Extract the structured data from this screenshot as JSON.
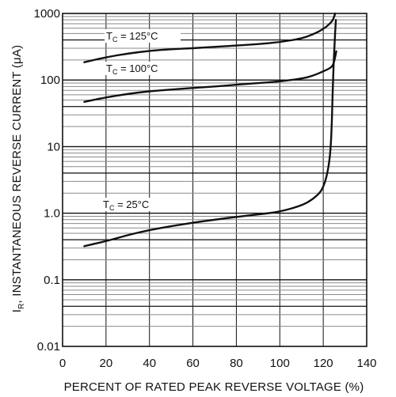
{
  "chart_data": {
    "type": "line",
    "xlabel": "PERCENT OF RATED PEAK REVERSE VOLTAGE (%)",
    "ylabel": "Iₒ, INSTANTANEOUS REVERSE CURRENT (μA)",
    "ylabel_parts": {
      "symbol": "I",
      "subscript": "R",
      "rest": ", INSTANTANEOUS REVERSE CURRENT (μA)"
    },
    "xlim": [
      0,
      140
    ],
    "ylim": [
      0.01,
      1000
    ],
    "yscale": "log",
    "x_ticks": [
      "0",
      "20",
      "40",
      "60",
      "80",
      "100",
      "120",
      "140"
    ],
    "y_ticks": [
      "0.01",
      "0.1",
      "1.0",
      "10",
      "100",
      "1000"
    ],
    "grid": "on",
    "series": [
      {
        "name": "TC = 125°C",
        "label_main": "T",
        "label_sub": "C",
        "label_rest": " = 125°C",
        "x": [
          10,
          20,
          30,
          40,
          50,
          60,
          70,
          80,
          90,
          100,
          110,
          115,
          120,
          123,
          124.5,
          125.5
        ],
        "y": [
          185,
          220,
          250,
          275,
          290,
          300,
          315,
          330,
          345,
          370,
          420,
          480,
          580,
          700,
          800,
          1000
        ]
      },
      {
        "name": "TC = 100°C",
        "label_main": "T",
        "label_sub": "C",
        "label_rest": " = 100°C",
        "x": [
          10,
          20,
          30,
          40,
          50,
          60,
          70,
          80,
          90,
          100,
          110,
          115,
          120,
          123,
          124.5,
          125.5,
          126
        ],
        "y": [
          47,
          55,
          62,
          68,
          72,
          76,
          80,
          85,
          90,
          95,
          105,
          115,
          135,
          150,
          165,
          220,
          270
        ]
      },
      {
        "name": "TC = 25°C",
        "label_main": "T",
        "label_sub": "C",
        "label_rest": " = 25°C",
        "x": [
          10,
          20,
          30,
          40,
          50,
          60,
          70,
          80,
          90,
          100,
          110,
          115,
          119,
          121,
          122.5,
          123.5,
          124,
          124.3,
          124.7,
          125.2,
          125.8
        ],
        "y": [
          0.32,
          0.38,
          0.47,
          0.56,
          0.64,
          0.72,
          0.8,
          0.88,
          0.96,
          1.05,
          1.3,
          1.6,
          2.1,
          3.0,
          5.0,
          10,
          25,
          60,
          150,
          350,
          800
        ]
      }
    ]
  }
}
